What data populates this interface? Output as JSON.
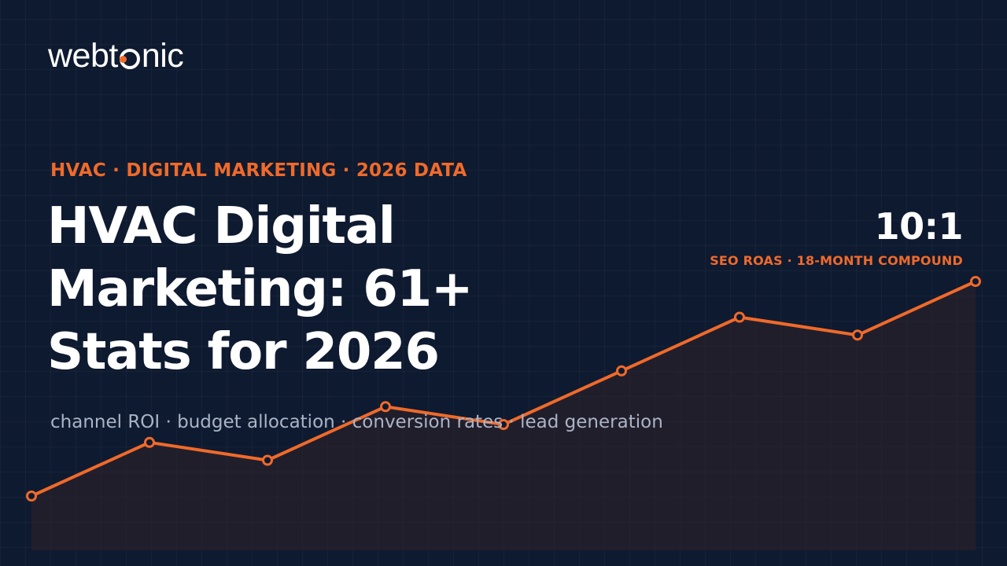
{
  "brand": {
    "name": "webtonic",
    "name_before_o": "webt",
    "name_after_o": "nic",
    "accent_color": "#f06a2a",
    "background_color": "#0e1a30"
  },
  "hero": {
    "kicker": "HVAC · DIGITAL MARKETING · 2026 DATA",
    "title_lines": [
      "HVAC Digital",
      "Marketing: 61+",
      "Stats for 2026"
    ],
    "subtitle": "channel ROI · budget allocation · conversion rates · lead generation"
  },
  "highlight_stat": {
    "value": "10:1",
    "label": "SEO ROAS · 18-MONTH COMPOUND"
  },
  "chart_data": {
    "type": "line",
    "values": [
      1.0,
      1.9,
      1.6,
      2.5,
      2.2,
      3.1,
      4.0,
      3.7,
      4.6
    ],
    "ylim": [
      0,
      5
    ],
    "grid": true,
    "line_color": "#f06a2a",
    "fill": "area"
  }
}
